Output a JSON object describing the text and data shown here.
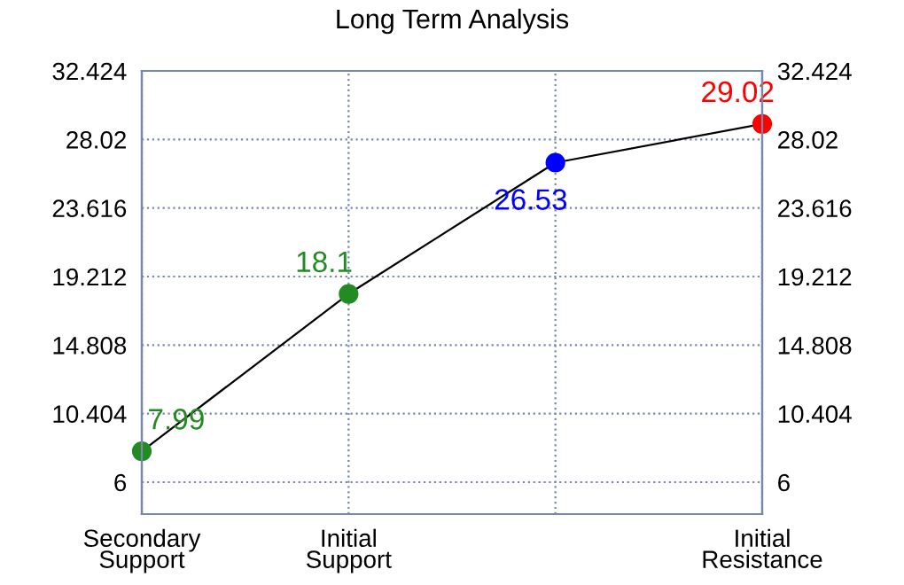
{
  "chart_data": {
    "type": "line",
    "title": "Long Term Analysis",
    "categories": [
      "Secondary\nSupport",
      "Initial\nSupport",
      null,
      "Initial\nResistance"
    ],
    "series": [
      {
        "color": "#000000",
        "colors": [
          "#228b22",
          "#228b22",
          "#0000ff",
          "#ff0000"
        ],
        "values": [
          7.99,
          18.1,
          26.53,
          29.02
        ]
      }
    ],
    "ylim": [
      3.95,
      32.424
    ],
    "yticks": [
      6,
      10.404,
      14.808,
      19.212,
      23.616,
      28.02,
      32.424
    ],
    "y2lim": [
      3.95,
      32.424
    ],
    "y2ticks": [
      6,
      10.404,
      14.808,
      19.212,
      23.616,
      28.02,
      32.424
    ],
    "data_labels": true,
    "grid": true,
    "marker": "circle",
    "line_style": "solid",
    "legend": false
  }
}
